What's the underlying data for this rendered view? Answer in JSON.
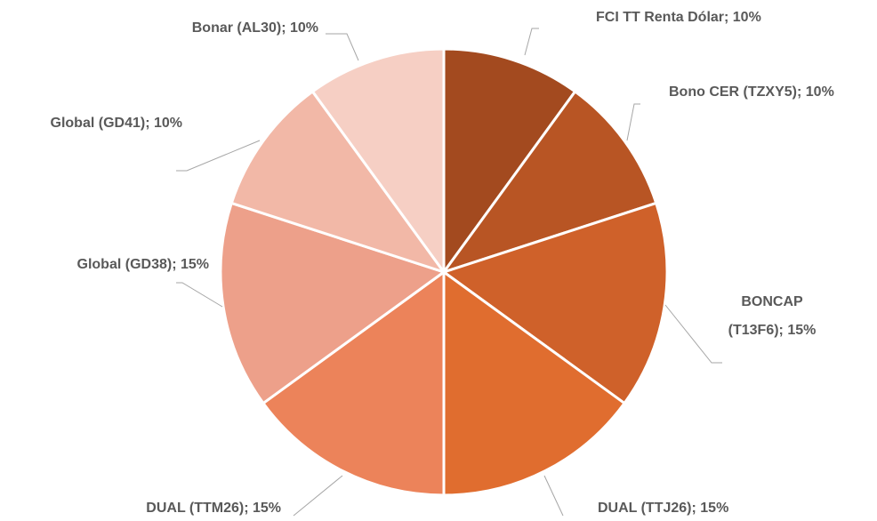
{
  "chart_data": {
    "type": "pie",
    "values": [
      10,
      10,
      15,
      15,
      15,
      15,
      10,
      10
    ],
    "value_labels": [
      "FCI TT Renta Dólar; 10%",
      "Bono CER (TZXY5); 10%",
      "BONCAP\n(T13F6); 15%",
      "DUAL (TTJ26); 15%",
      "DUAL (TTM26); 15%",
      "Global (GD38); 15%",
      "Global (GD41); 10%",
      "Bonar (AL30); 10%"
    ],
    "colors": [
      "#a34a1f",
      "#b85524",
      "#cf612a",
      "#e06d2f",
      "#ec835a",
      "#eda08a",
      "#f2b8a7",
      "#f6cfc4"
    ]
  }
}
